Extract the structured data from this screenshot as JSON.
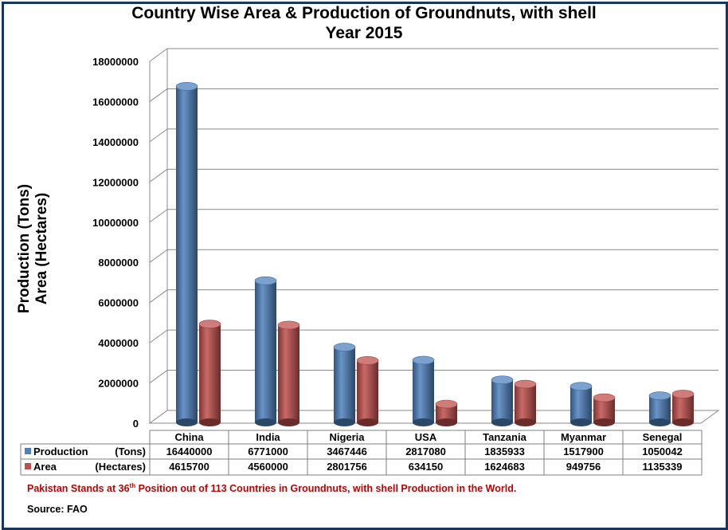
{
  "chart_data": {
    "type": "bar",
    "title_line1": "Country Wise Area & Production of Groundnuts, with shell",
    "title_line2": "Year 2015",
    "ylabel_line1": "Production (Tons)",
    "ylabel_line2": "Area (Hectares)",
    "categories": [
      "China",
      "India",
      "Nigeria",
      "USA",
      "Tanzania",
      "Myanmar",
      "Senegal"
    ],
    "series": [
      {
        "name": "Production",
        "unit": "(Tons)",
        "color": "#4f81bd",
        "values": [
          16440000,
          6771000,
          3467446,
          2817080,
          1835933,
          1517900,
          1050042
        ]
      },
      {
        "name": "Area",
        "unit": "(Hectares)",
        "color": "#c0504d",
        "values": [
          4615700,
          4560000,
          2801756,
          634150,
          1624683,
          949756,
          1135339
        ]
      }
    ],
    "yticks": [
      "0",
      "2000000",
      "4000000",
      "6000000",
      "8000000",
      "10000000",
      "12000000",
      "14000000",
      "16000000",
      "18000000"
    ],
    "ylim": [
      0,
      18000000
    ],
    "grid": true,
    "legend": "data-table"
  },
  "note": {
    "pre": "Pakistan Stands at 36",
    "sup": "th",
    "post": " Position out of 113 Countries in Groundnuts, with shell Production in the World."
  },
  "source": "Source: FAO"
}
